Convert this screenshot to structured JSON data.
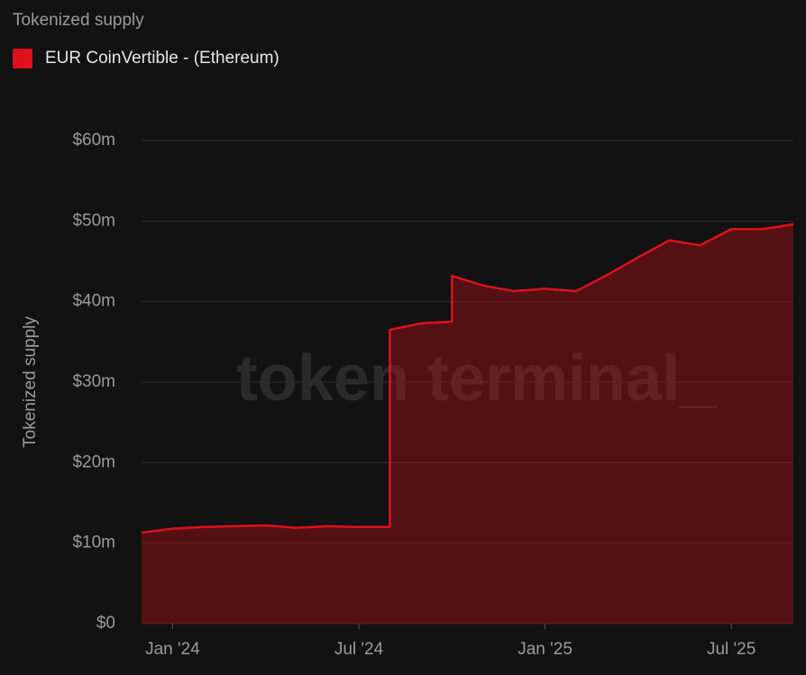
{
  "chart_data": {
    "type": "area",
    "title": "Tokenized supply",
    "y_label": "Tokenized supply",
    "watermark": "token terminal_",
    "x": [
      "2023-12",
      "2024-01",
      "2024-02",
      "2024-03",
      "2024-04",
      "2024-05",
      "2024-06",
      "2024-07",
      "2024-08",
      "2024-08",
      "2024-09",
      "2024-10",
      "2024-10",
      "2024-11",
      "2024-12",
      "2025-01",
      "2025-02",
      "2025-03",
      "2025-04",
      "2025-05",
      "2025-06",
      "2025-07",
      "2025-08",
      "2025-09"
    ],
    "series": [
      {
        "name": "EUR CoinVertible - (Ethereum)",
        "color": "#e0101c",
        "values": [
          11.3,
          11.8,
          12.0,
          12.1,
          12.2,
          11.9,
          12.1,
          12.0,
          12.0,
          36.5,
          37.3,
          37.5,
          43.2,
          42.0,
          41.3,
          41.6,
          41.3,
          43.3,
          45.5,
          47.6,
          47.0,
          49.0,
          49.0,
          49.6
        ]
      }
    ],
    "xlim": [
      "2023-12",
      "2025-09"
    ],
    "xticks": [
      {
        "value": "2024-01",
        "label": "Jan '24"
      },
      {
        "value": "2024-07",
        "label": "Jul '24"
      },
      {
        "value": "2025-01",
        "label": "Jan '25"
      },
      {
        "value": "2025-07",
        "label": "Jul '25"
      }
    ],
    "ylim": [
      0,
      60
    ],
    "yticks": [
      {
        "value": 0,
        "label": "$0"
      },
      {
        "value": 10,
        "label": "$10m"
      },
      {
        "value": 20,
        "label": "$20m"
      },
      {
        "value": 30,
        "label": "$30m"
      },
      {
        "value": 40,
        "label": "$40m"
      },
      {
        "value": 50,
        "label": "$50m"
      },
      {
        "value": 60,
        "label": "$60m"
      }
    ],
    "grid": true
  }
}
